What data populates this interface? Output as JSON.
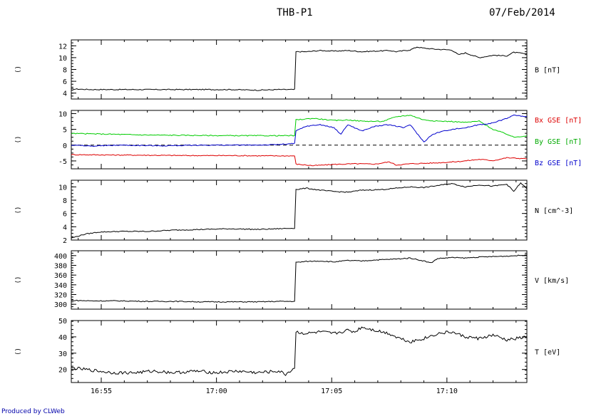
{
  "header": {
    "title": "THB-P1",
    "date": "07/Feb/2014"
  },
  "credit": "Produced by CLWeb",
  "chart_data": [
    {
      "type": "line",
      "label": "B [nT]",
      "side_label": "()",
      "ylim": [
        3,
        13
      ],
      "yticks": [
        4,
        6,
        8,
        10,
        12
      ],
      "xlim": [
        16.895,
        17.2245
      ],
      "xtick_labels": [
        "16:55",
        "17:00",
        "17:05",
        "17:10"
      ],
      "series": [
        {
          "name": "B [nT]",
          "color": "#000000",
          "x": [
            16.895,
            16.91,
            16.93,
            16.95,
            16.97,
            16.99,
            17.01,
            17.03,
            17.045,
            17.0565,
            17.0575,
            17.065,
            17.075,
            17.085,
            17.095,
            17.105,
            17.115,
            17.125,
            17.13,
            17.14,
            17.145,
            17.15,
            17.16,
            17.17,
            17.175,
            17.18,
            17.19,
            17.2,
            17.21,
            17.215,
            17.2245
          ],
          "values": [
            4.7,
            4.6,
            4.6,
            4.6,
            4.6,
            4.6,
            4.6,
            4.5,
            4.6,
            4.6,
            11.0,
            11.0,
            11.2,
            11.1,
            11.2,
            11.0,
            11.1,
            11.2,
            11.0,
            11.3,
            11.8,
            11.6,
            11.4,
            11.3,
            10.5,
            10.8,
            10.0,
            10.4,
            10.3,
            10.9,
            10.6
          ]
        }
      ]
    },
    {
      "type": "line",
      "label": "",
      "side_label": "()",
      "ylim": [
        -7.5,
        11
      ],
      "yticks": [
        -5,
        0,
        5,
        10
      ],
      "zero_line": true,
      "xlim": [
        16.895,
        17.2245
      ],
      "xtick_labels": [
        "16:55",
        "17:00",
        "17:05",
        "17:10"
      ],
      "series": [
        {
          "name": "Bx GSE [nT]",
          "color": "#dd0000",
          "x": [
            16.895,
            16.92,
            16.95,
            16.98,
            17.01,
            17.04,
            17.0565,
            17.0575,
            17.07,
            17.085,
            17.1,
            17.115,
            17.125,
            17.13,
            17.14,
            17.16,
            17.175,
            17.19,
            17.2,
            17.21,
            17.2245
          ],
          "values": [
            -3.0,
            -3.1,
            -3.2,
            -3.3,
            -3.3,
            -3.4,
            -3.4,
            -6.0,
            -6.5,
            -6.1,
            -5.9,
            -6.0,
            -5.3,
            -6.3,
            -5.9,
            -5.6,
            -5.2,
            -4.5,
            -4.9,
            -4.0,
            -4.3
          ]
        },
        {
          "name": "By GSE [nT]",
          "color": "#00cc00",
          "x": [
            16.895,
            16.92,
            16.95,
            16.98,
            17.01,
            17.04,
            17.0565,
            17.0575,
            17.07,
            17.085,
            17.095,
            17.105,
            17.12,
            17.13,
            17.14,
            17.15,
            17.16,
            17.17,
            17.18,
            17.19,
            17.2,
            17.21,
            17.215,
            17.2245
          ],
          "values": [
            3.7,
            3.5,
            3.2,
            3.1,
            3.0,
            3.0,
            3.0,
            8.0,
            8.5,
            7.8,
            8.0,
            7.6,
            7.5,
            9.0,
            9.5,
            8.0,
            7.6,
            7.5,
            7.2,
            7.6,
            5.0,
            3.5,
            2.5,
            3.0
          ]
        },
        {
          "name": "Bz GSE [nT]",
          "color": "#0000cc",
          "x": [
            16.895,
            16.91,
            16.93,
            16.96,
            16.99,
            17.02,
            17.04,
            17.0565,
            17.0575,
            17.065,
            17.075,
            17.085,
            17.09,
            17.095,
            17.105,
            17.115,
            17.125,
            17.13,
            17.135,
            17.14,
            17.15,
            17.155,
            17.16,
            17.17,
            17.18,
            17.19,
            17.2,
            17.21,
            17.215,
            17.2245
          ],
          "values": [
            0.0,
            -0.3,
            0.0,
            -0.2,
            0.0,
            0.0,
            0.1,
            0.5,
            4.5,
            6.0,
            6.5,
            5.5,
            3.5,
            6.5,
            4.5,
            6.0,
            6.5,
            6.0,
            5.5,
            6.5,
            1.0,
            3.0,
            4.0,
            5.0,
            5.5,
            6.5,
            7.0,
            8.5,
            9.5,
            9.0
          ]
        }
      ]
    },
    {
      "type": "line",
      "label": "N [cm^-3]",
      "side_label": "()",
      "ylim": [
        2,
        11
      ],
      "yticks": [
        2,
        4,
        6,
        8,
        10
      ],
      "xlim": [
        16.895,
        17.2245
      ],
      "xtick_labels": [
        "16:55",
        "17:00",
        "17:05",
        "17:10"
      ],
      "series": [
        {
          "name": "N [cm^-3]",
          "color": "#000000",
          "x": [
            16.895,
            16.905,
            16.915,
            16.93,
            16.95,
            16.97,
            16.99,
            17.01,
            17.03,
            17.045,
            17.0565,
            17.0575,
            17.065,
            17.075,
            17.085,
            17.095,
            17.105,
            17.12,
            17.13,
            17.14,
            17.15,
            17.16,
            17.17,
            17.18,
            17.19,
            17.2,
            17.21,
            17.215,
            17.22,
            17.2245
          ],
          "values": [
            2.3,
            2.9,
            3.2,
            3.3,
            3.3,
            3.5,
            3.6,
            3.7,
            3.6,
            3.7,
            3.8,
            9.6,
            9.8,
            9.5,
            9.3,
            9.2,
            9.5,
            9.6,
            9.8,
            10.0,
            9.9,
            10.2,
            10.5,
            10.0,
            10.3,
            10.1,
            10.4,
            9.3,
            10.6,
            9.7
          ]
        }
      ]
    },
    {
      "type": "line",
      "label": "V [km/s]",
      "side_label": "()",
      "ylim": [
        290,
        410
      ],
      "yticks": [
        300,
        320,
        340,
        360,
        380,
        400
      ],
      "xlim": [
        16.895,
        17.2245
      ],
      "xtick_labels": [
        "16:55",
        "17:00",
        "17:05",
        "17:10"
      ],
      "series": [
        {
          "name": "V [km/s]",
          "color": "#000000",
          "x": [
            16.895,
            16.91,
            16.93,
            16.95,
            16.97,
            16.99,
            17.01,
            17.03,
            17.045,
            17.0565,
            17.0575,
            17.065,
            17.075,
            17.085,
            17.095,
            17.105,
            17.115,
            17.13,
            17.14,
            17.15,
            17.155,
            17.16,
            17.17,
            17.18,
            17.19,
            17.2,
            17.21,
            17.2245
          ],
          "values": [
            308,
            307,
            307,
            306,
            306,
            305,
            305,
            305,
            306,
            306,
            386,
            388,
            389,
            387,
            390,
            389,
            391,
            393,
            395,
            389,
            385,
            394,
            396,
            395,
            397,
            398,
            399,
            401
          ]
        }
      ]
    },
    {
      "type": "line",
      "label": "T [eV]",
      "side_label": "()",
      "ylim": [
        12,
        50
      ],
      "yticks": [
        20,
        30,
        40,
        50
      ],
      "xlim": [
        16.895,
        17.2245
      ],
      "xtick_labels": [
        "16:55",
        "17:00",
        "17:05",
        "17:10"
      ],
      "series": [
        {
          "name": "T [eV]",
          "color": "#000000",
          "x": [
            16.895,
            16.905,
            16.915,
            16.925,
            16.94,
            16.955,
            16.97,
            16.985,
            17.0,
            17.015,
            17.03,
            17.045,
            17.05,
            17.0565,
            17.0575,
            17.065,
            17.075,
            17.085,
            17.095,
            17.1,
            17.105,
            17.115,
            17.125,
            17.13,
            17.14,
            17.15,
            17.16,
            17.17,
            17.18,
            17.19,
            17.2,
            17.21,
            17.2245
          ],
          "values": [
            21,
            20,
            19,
            18,
            18,
            19,
            18,
            19,
            18,
            19,
            18,
            19,
            17,
            21,
            43,
            42,
            43,
            42,
            44,
            43,
            46,
            44,
            42,
            40,
            37,
            39,
            42,
            43,
            40,
            39,
            41,
            38,
            40
          ]
        }
      ]
    }
  ],
  "channel_labels": {
    "bx": "Bx GSE [nT]",
    "by": "By GSE [nT]",
    "bz": "Bz GSE [nT]"
  }
}
